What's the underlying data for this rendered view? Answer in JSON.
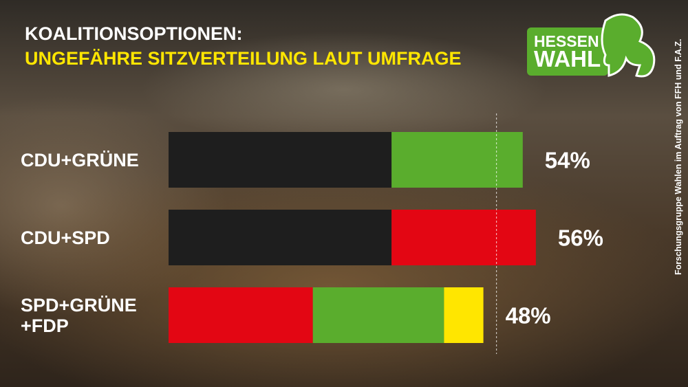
{
  "chart_data": {
    "type": "stacked-bar",
    "orientation": "horizontal",
    "title": "KOALITIONSOPTIONEN:",
    "subtitle": "UNGEFÄHRE SITZVERTEILUNG LAUT UMFRAGE",
    "categories": [
      "CDU+GRÜNE",
      "CDU+SPD",
      "SPD+GRÜNE\n+FDP"
    ],
    "series": [
      {
        "color": "#1e1e1e",
        "values": [
          34,
          34,
          null
        ]
      },
      {
        "color": "#e30613",
        "values": [
          null,
          22,
          22
        ]
      },
      {
        "color": "#5aad2d",
        "values": [
          20,
          null,
          20
        ]
      },
      {
        "color": "#ffe600",
        "values": [
          null,
          null,
          6
        ]
      }
    ],
    "totals": [
      54,
      56,
      48
    ],
    "total_labels": [
      "54%",
      "56%",
      "48%"
    ],
    "reference_line": 50,
    "xlim": [
      0,
      60
    ],
    "logo": [
      "HESSEN",
      "WAHL"
    ],
    "source": "Forschungsgruppe Wahlen im Auftrag von FFH und F.A.Z."
  }
}
